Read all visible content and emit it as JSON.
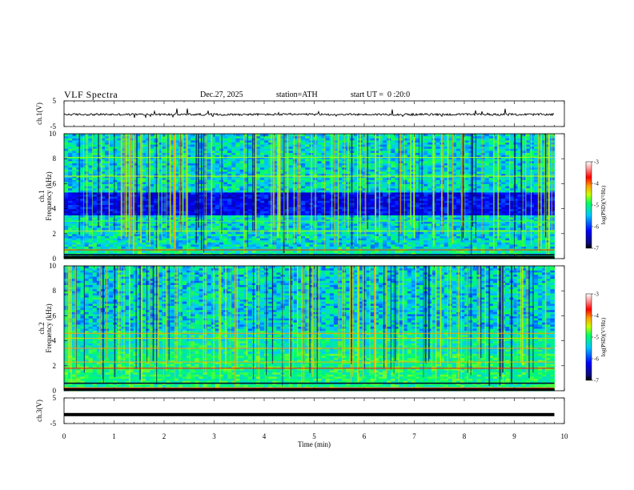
{
  "header": {
    "title": "VLF Spectra",
    "date": "Dec.27, 2025",
    "station": "station=ATH",
    "start_ut": "start UT =  0 :20:0"
  },
  "chart_data": [
    {
      "type": "line",
      "panel": "ch1-waveform",
      "ylabel": "ch.1(V)",
      "ylim": [
        -5,
        5
      ],
      "xlim": [
        0,
        10
      ],
      "y_tick_labels": [
        "5",
        "-5"
      ],
      "baseline": -0.3,
      "data_extent_min": 9.8
    },
    {
      "type": "heatmap",
      "panel": "ch1-spectrogram",
      "ylabel": "ch.1\nFrequency (kHz)",
      "ylabel_lines": [
        "ch.1",
        "Frequency (kHz)"
      ],
      "ylim": [
        0,
        10
      ],
      "y_tick_labels": [
        "0",
        "2",
        "4",
        "6",
        "8",
        "10"
      ],
      "xlim": [
        0,
        10
      ],
      "data_extent_min": 9.8,
      "colorbar": {
        "label": "log(PSD)(V²/Hz)",
        "range": [
          -7,
          -3
        ],
        "tick_labels": [
          "-3",
          "-4",
          "-5",
          "-6",
          "-7"
        ]
      }
    },
    {
      "type": "heatmap",
      "panel": "ch2-spectrogram",
      "ylabel": "ch.2\nFrequency (kHz)",
      "ylabel_lines": [
        "ch.2",
        "Frequency (kHz)"
      ],
      "ylim": [
        0,
        10
      ],
      "y_tick_labels": [
        "0",
        "2",
        "4",
        "6",
        "8",
        "10"
      ],
      "xlim": [
        0,
        10
      ],
      "data_extent_min": 9.8,
      "colorbar": {
        "label": "log(PSD)(V²/Hz)",
        "range": [
          -7,
          -3
        ],
        "tick_labels": [
          "-3",
          "-4",
          "-5",
          "-6",
          "-7"
        ]
      }
    },
    {
      "type": "line",
      "panel": "ch3-waveform",
      "ylabel": "ch.3(V)",
      "ylim": [
        -5,
        5
      ],
      "xlim": [
        0,
        10
      ],
      "y_tick_labels": [
        "5",
        "-5"
      ],
      "baseline": -1.5,
      "data_extent_min": 9.8
    }
  ],
  "x_axis": {
    "label": "Time (min)",
    "range": [
      0,
      10
    ],
    "tick_labels": [
      "0",
      "1",
      "2",
      "3",
      "4",
      "5",
      "6",
      "7",
      "8",
      "9",
      "10"
    ]
  }
}
